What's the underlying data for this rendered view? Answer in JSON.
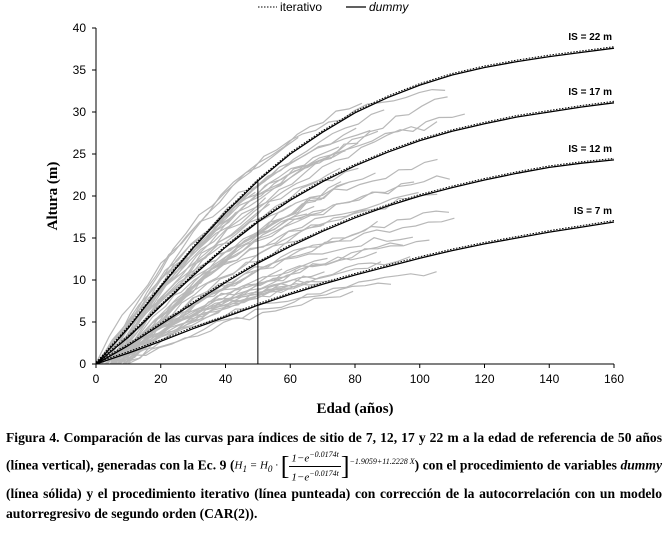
{
  "chart_data": {
    "type": "line",
    "xlabel": "Edad (años)",
    "ylabel": "Altura (m)",
    "xlim": [
      0,
      160
    ],
    "ylim": [
      0,
      40
    ],
    "xticks": [
      "0",
      "20",
      "40",
      "60",
      "80",
      "100",
      "120",
      "140",
      "160"
    ],
    "yticks": [
      "0",
      "5",
      "10",
      "15",
      "20",
      "25",
      "30",
      "35",
      "40"
    ],
    "reference_age": 50,
    "legend": {
      "iterative_label": "iterativo",
      "dummy_label": "dummy",
      "placement": "top-center"
    },
    "series": [
      {
        "name": "IS = 22 m",
        "x": [
          0,
          10,
          20,
          30,
          40,
          50,
          60,
          70,
          80,
          90,
          100,
          110,
          120,
          130,
          140,
          150,
          160
        ],
        "values": [
          0,
          4.3,
          9.2,
          13.8,
          18.0,
          21.8,
          25.0,
          27.6,
          29.9,
          31.7,
          33.2,
          34.4,
          35.3,
          36.0,
          36.6,
          37.1,
          37.6
        ]
      },
      {
        "name": "IS = 17 m",
        "x": [
          0,
          10,
          20,
          30,
          40,
          50,
          60,
          70,
          80,
          90,
          100,
          110,
          120,
          130,
          140,
          150,
          160
        ],
        "values": [
          0,
          3.2,
          6.9,
          10.5,
          13.9,
          16.9,
          19.5,
          21.7,
          23.6,
          25.2,
          26.6,
          27.7,
          28.6,
          29.4,
          30.0,
          30.6,
          31.1
        ]
      },
      {
        "name": "IS = 12 m",
        "x": [
          0,
          10,
          20,
          30,
          40,
          50,
          60,
          70,
          80,
          90,
          100,
          110,
          120,
          130,
          140,
          150,
          160
        ],
        "values": [
          0,
          2.2,
          4.7,
          7.2,
          9.7,
          12.0,
          14.0,
          15.8,
          17.4,
          18.8,
          20.0,
          21.0,
          21.9,
          22.7,
          23.4,
          23.9,
          24.3
        ]
      },
      {
        "name": "IS = 7 m",
        "x": [
          0,
          10,
          20,
          30,
          40,
          50,
          60,
          70,
          80,
          90,
          100,
          110,
          120,
          130,
          140,
          150,
          160
        ],
        "values": [
          0,
          1.3,
          2.7,
          4.2,
          5.6,
          7.0,
          8.3,
          9.5,
          10.6,
          11.6,
          12.6,
          13.5,
          14.3,
          15.0,
          15.7,
          16.3,
          16.9
        ]
      }
    ],
    "observed_profiles_note_count": 60
  },
  "caption": {
    "part1": "Figura 4. Comparación de las curvas para índices de sitio de 7, 12, 17 y 22 m a la edad de referencia de 50 años (línea vertical), generadas con la Ec. 9 (",
    "eq_h1": "H",
    "eq_num": "1−e",
    "eq_num_exp": "−0.0174t",
    "eq_den": "1−e",
    "eq_den_exp": "−0.0174t",
    "eq_outer_exp": "−1.9059+11.2228 X",
    "part2": ") con el procedimiento de variables ",
    "dummy_word": "dummy",
    "part3": " (línea sólida) y el procedimiento iterativo (línea punteada) con corrección de la autocorrelación con un modelo autorregresivo de segundo orden (CAR(2))."
  }
}
